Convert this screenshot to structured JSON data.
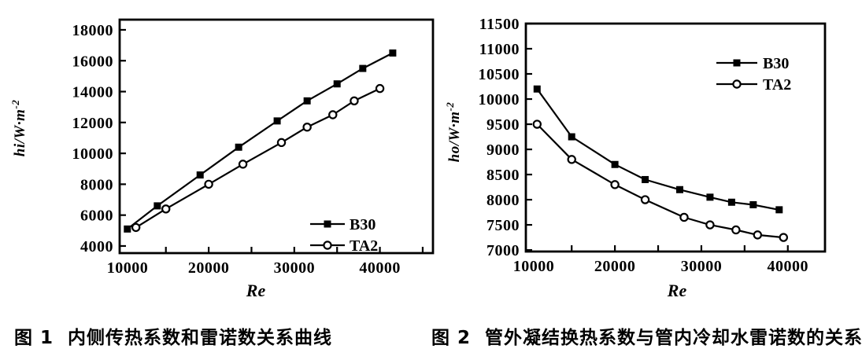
{
  "page": {
    "background": "#ffffff",
    "ink": "#000000"
  },
  "captions": [
    {
      "fig_label": "图 1",
      "text": "内侧传热系数和雷诺数关系曲线"
    },
    {
      "fig_label": "图 2",
      "text": "管外凝结换热系数与管内冷却水雷诺数的关系"
    }
  ],
  "chart_data": [
    {
      "type": "line",
      "title": "",
      "xlabel": "Re",
      "ylabel": "hi/W·m⁻²",
      "ylabel_parts": {
        "italic": "hi",
        "rest": "/W·m",
        "sup": "-2"
      },
      "xlim": [
        9600,
        46200
      ],
      "ylim": [
        3540,
        18660
      ],
      "xticks_labeled": [
        10000,
        20000,
        30000,
        40000
      ],
      "xticks_minor_step": 5000,
      "yticks": [
        4000,
        6000,
        8000,
        10000,
        12000,
        14000,
        16000,
        18000
      ],
      "grid": false,
      "legend": {
        "position": "inside-bottom-right",
        "entries": [
          "B30",
          "TA2"
        ]
      },
      "series": [
        {
          "name": "B30",
          "marker": "filled-square",
          "x": [
            10500,
            14000,
            19000,
            23500,
            28000,
            31500,
            35000,
            38000,
            41500
          ],
          "y": [
            5100,
            6600,
            8600,
            10400,
            12100,
            13400,
            14500,
            15500,
            16500
          ]
        },
        {
          "name": "TA2",
          "marker": "open-circle",
          "x": [
            11500,
            15000,
            20000,
            24000,
            28500,
            31500,
            34500,
            37000,
            40000
          ],
          "y": [
            5200,
            6400,
            8000,
            9300,
            10700,
            11700,
            12500,
            13400,
            14200
          ]
        }
      ]
    },
    {
      "type": "line",
      "title": "",
      "xlabel": "Re",
      "ylabel": "ho/W·m⁻²",
      "ylabel_parts": {
        "italic": "ho",
        "rest": "/W·m",
        "sup": "-2"
      },
      "xlim": [
        9700,
        44300
      ],
      "ylim": [
        6970,
        11500
      ],
      "xticks_labeled": [
        10000,
        20000,
        30000,
        40000
      ],
      "xticks_minor_step": 5000,
      "yticks": [
        7000,
        7500,
        8000,
        8500,
        9000,
        9500,
        10000,
        10500,
        11000,
        11500
      ],
      "grid": false,
      "legend": {
        "position": "inside-top-right",
        "entries": [
          "B30",
          "TA2"
        ]
      },
      "series": [
        {
          "name": "B30",
          "marker": "filled-square",
          "x": [
            11000,
            15000,
            20000,
            23500,
            27500,
            31000,
            33500,
            36000,
            39000
          ],
          "y": [
            10200,
            9250,
            8700,
            8400,
            8200,
            8050,
            7950,
            7900,
            7800
          ]
        },
        {
          "name": "TA2",
          "marker": "open-circle",
          "x": [
            11000,
            15000,
            20000,
            23500,
            28000,
            31000,
            34000,
            36500,
            39500
          ],
          "y": [
            9500,
            8800,
            8300,
            8000,
            7650,
            7500,
            7400,
            7300,
            7250
          ]
        }
      ]
    }
  ]
}
